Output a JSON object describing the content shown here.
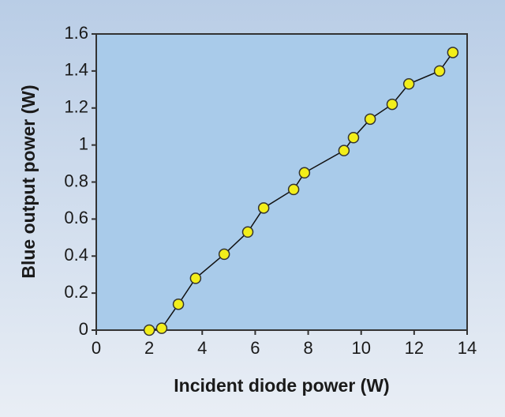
{
  "chart_data": {
    "type": "line",
    "x_label": "Incident diode power (W)",
    "y_label": "Blue output power (W)",
    "x": [
      2.0,
      2.47,
      3.1,
      3.75,
      4.83,
      5.72,
      6.32,
      7.45,
      7.86,
      9.35,
      9.71,
      10.34,
      11.17,
      11.8,
      12.96,
      13.46
    ],
    "series": [
      {
        "color": "#f2ee1a",
        "values": [
          0,
          0.01,
          0.14,
          0.28,
          0.41,
          0.53,
          0.66,
          0.76,
          0.85,
          0.97,
          1.04,
          1.14,
          1.22,
          1.33,
          1.4,
          1.5
        ]
      }
    ],
    "xlim": [
      0,
      14
    ],
    "xticks": [
      0,
      2,
      4,
      6,
      8,
      10,
      12,
      14
    ],
    "ylim": [
      0,
      1.6
    ],
    "yticks": [
      0,
      0.2,
      0.4,
      0.6,
      0.8,
      1,
      1.2,
      1.4,
      1.6
    ]
  }
}
